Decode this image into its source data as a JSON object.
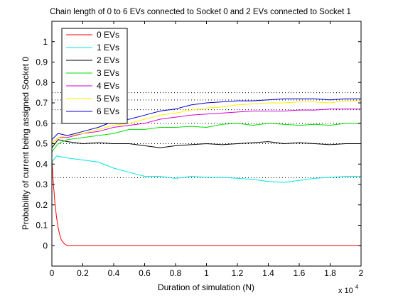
{
  "chart_data": {
    "type": "line",
    "title": "Chain length of 0 to 6 EVs connected to Socket 0 and 2 EVs connected to Socket 1",
    "xlabel": "Duration of simulation (N)",
    "ylabel": "Probability of current being assigned Socket 0",
    "x_multiplier_label": "x 10",
    "x_multiplier_exponent": "4",
    "xlim": [
      0,
      20000
    ],
    "ylim": [
      -0.1,
      1.1
    ],
    "xticks": [
      0,
      2000,
      4000,
      6000,
      8000,
      10000,
      12000,
      14000,
      16000,
      18000,
      20000
    ],
    "xtick_labels": [
      "0",
      "0.2",
      "0.4",
      "0.6",
      "0.8",
      "1",
      "1.2",
      "1.4",
      "1.6",
      "1.8",
      "2"
    ],
    "yticks": [
      0,
      0.1,
      0.2,
      0.3,
      0.4,
      0.5,
      0.6,
      0.7,
      0.8,
      0.9,
      1
    ],
    "ytick_labels": [
      "0",
      "0.1",
      "0.2",
      "0.3",
      "0.4",
      "0.5",
      "0.6",
      "0.7",
      "0.8",
      "0.9",
      "1"
    ],
    "reference_lines": [
      0.3333,
      0.5,
      0.6,
      0.6667,
      0.7143,
      0.75
    ],
    "legend_position": "top-left",
    "series": [
      {
        "name": "0 EVs",
        "color": "#ff0000",
        "x": [
          0,
          100,
          200,
          300,
          400,
          500,
          600,
          800,
          1000,
          2000,
          20000
        ],
        "y": [
          0.42,
          0.3,
          0.21,
          0.14,
          0.09,
          0.055,
          0.03,
          0.01,
          0.0,
          0.0,
          0.0
        ]
      },
      {
        "name": "1 EVs",
        "color": "#00e5e5",
        "x": [
          0,
          300,
          1000,
          2000,
          3000,
          4000,
          5000,
          6000,
          7000,
          8000,
          9000,
          10000,
          11000,
          12000,
          13000,
          14000,
          15000,
          16000,
          17000,
          18000,
          19000,
          20000
        ],
        "y": [
          0.41,
          0.44,
          0.43,
          0.42,
          0.41,
          0.38,
          0.36,
          0.34,
          0.34,
          0.33,
          0.34,
          0.335,
          0.335,
          0.33,
          0.325,
          0.315,
          0.31,
          0.32,
          0.33,
          0.335,
          0.34,
          0.34
        ]
      },
      {
        "name": "2 EVs",
        "color": "#000000",
        "x": [
          0,
          400,
          1000,
          2000,
          3000,
          4000,
          5000,
          6000,
          7000,
          8000,
          9000,
          10000,
          11000,
          12000,
          13000,
          14000,
          15000,
          16000,
          17000,
          18000,
          19000,
          20000
        ],
        "y": [
          0.48,
          0.52,
          0.51,
          0.5,
          0.505,
          0.5,
          0.5,
          0.49,
          0.48,
          0.49,
          0.495,
          0.5,
          0.495,
          0.5,
          0.505,
          0.51,
          0.5,
          0.505,
          0.5,
          0.495,
          0.5,
          0.5
        ]
      },
      {
        "name": "3 EVs",
        "color": "#00dd00",
        "x": [
          0,
          400,
          1000,
          2000,
          3000,
          4000,
          5000,
          6000,
          7000,
          8000,
          9000,
          10000,
          11000,
          12000,
          13000,
          14000,
          15000,
          16000,
          17000,
          18000,
          19000,
          20000
        ],
        "y": [
          0.46,
          0.5,
          0.52,
          0.53,
          0.54,
          0.55,
          0.57,
          0.57,
          0.58,
          0.58,
          0.585,
          0.58,
          0.595,
          0.6,
          0.59,
          0.6,
          0.595,
          0.59,
          0.595,
          0.59,
          0.6,
          0.6
        ]
      },
      {
        "name": "4 EVs",
        "color": "#d400d4",
        "x": [
          0,
          400,
          1000,
          2000,
          3000,
          4000,
          5000,
          6000,
          7000,
          8000,
          9000,
          10000,
          11000,
          12000,
          13000,
          14000,
          15000,
          16000,
          17000,
          18000,
          19000,
          20000
        ],
        "y": [
          0.5,
          0.53,
          0.53,
          0.55,
          0.56,
          0.58,
          0.59,
          0.6,
          0.62,
          0.63,
          0.64,
          0.645,
          0.65,
          0.655,
          0.66,
          0.66,
          0.66,
          0.665,
          0.665,
          0.67,
          0.67,
          0.67
        ]
      },
      {
        "name": "5 EVs",
        "color": "#ffee00",
        "x": [
          0,
          400,
          1000,
          2000,
          3000,
          4000,
          5000,
          6000,
          7000,
          8000,
          9000,
          10000,
          11000,
          12000,
          13000,
          14000,
          15000,
          16000,
          17000,
          18000,
          19000,
          20000
        ],
        "y": [
          0.5,
          0.53,
          0.54,
          0.55,
          0.57,
          0.59,
          0.6,
          0.62,
          0.64,
          0.65,
          0.665,
          0.675,
          0.68,
          0.69,
          0.695,
          0.7,
          0.7,
          0.705,
          0.705,
          0.7,
          0.71,
          0.71
        ]
      },
      {
        "name": "6 EVs",
        "color": "#0000cc",
        "x": [
          0,
          400,
          1000,
          2000,
          3000,
          4000,
          5000,
          6000,
          7000,
          8000,
          9000,
          10000,
          11000,
          12000,
          13000,
          14000,
          15000,
          16000,
          17000,
          18000,
          19000,
          20000
        ],
        "y": [
          0.52,
          0.55,
          0.54,
          0.56,
          0.58,
          0.61,
          0.62,
          0.64,
          0.66,
          0.67,
          0.69,
          0.7,
          0.705,
          0.71,
          0.71,
          0.715,
          0.72,
          0.72,
          0.72,
          0.715,
          0.72,
          0.72
        ]
      }
    ]
  }
}
